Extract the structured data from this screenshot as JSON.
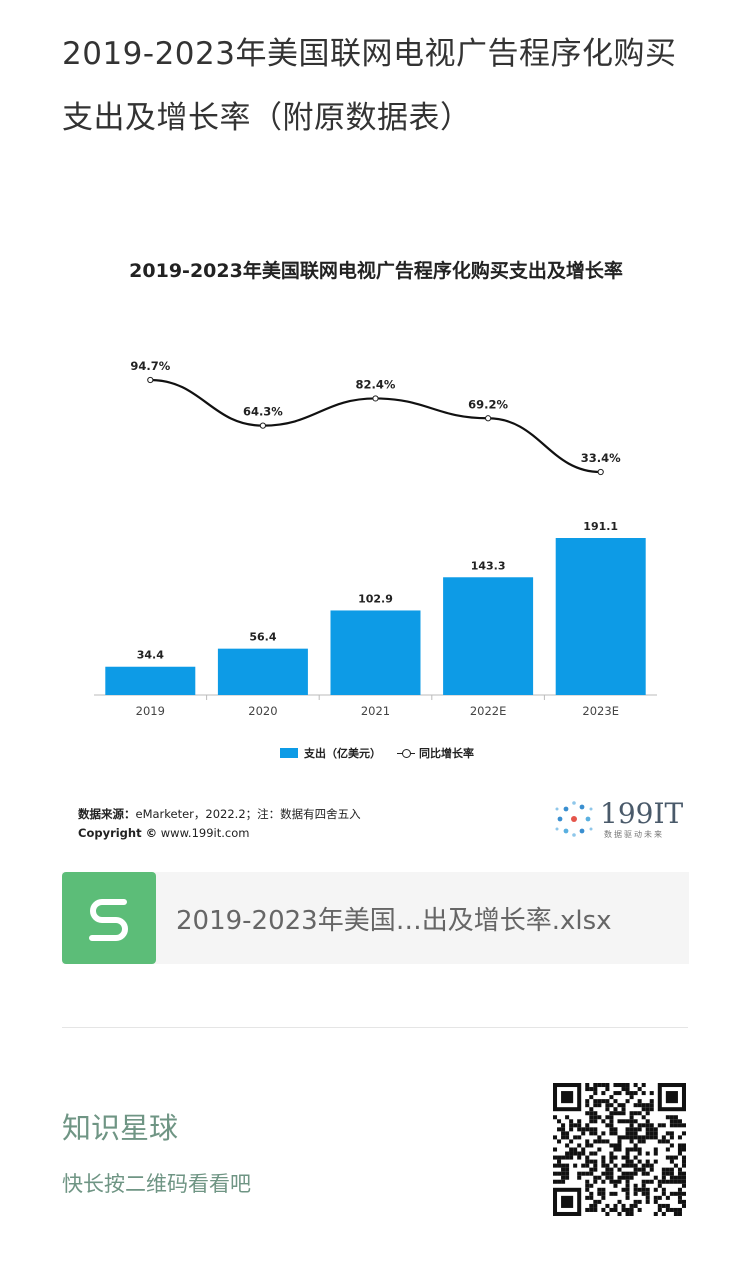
{
  "article": {
    "title": "2019-2023年美国联网电视广告程序化购买支出及增长率（附原数据表）"
  },
  "figure": {
    "source_label": "数据来源：",
    "source_text": "eMarketer，2022.2；注：数据有四舍五入",
    "copyright_label": "Copyright ©",
    "copyright_text": "www.199it.com",
    "logo_text": "199IT",
    "logo_sub": "数据驱动未来"
  },
  "chart_data": {
    "type": "bar",
    "title": "2019-2023年美国联网电视广告程序化购买支出及增长率",
    "categories": [
      "2019",
      "2020",
      "2021",
      "2022E",
      "2023E"
    ],
    "series": [
      {
        "name": "支出（亿美元）",
        "type": "bar",
        "values": [
          34.4,
          56.4,
          102.9,
          143.3,
          191.1
        ],
        "labels": [
          "34.4",
          "56.4",
          "102.9",
          "143.3",
          "191.1"
        ],
        "color": "#0d9be6"
      },
      {
        "name": "同比增长率",
        "type": "line",
        "values": [
          94.7,
          64.3,
          82.4,
          69.2,
          33.4
        ],
        "labels": [
          "94.7%",
          "64.3%",
          "82.4%",
          "69.2%",
          "33.4%"
        ],
        "unit": "%",
        "color": "#111111"
      }
    ],
    "legend": {
      "bar_label": "支出（亿美元）",
      "line_label": "同比增长率",
      "position": "bottom"
    }
  },
  "attachment": {
    "icon": "spreadsheet-s-icon",
    "file_name": "2019-2023年美国…出及增长率.xlsx",
    "color": "#5cbd78"
  },
  "promo": {
    "title": "知识星球",
    "subtitle": "快长按二维码看看吧",
    "qr_icon": "qr-code-icon"
  }
}
